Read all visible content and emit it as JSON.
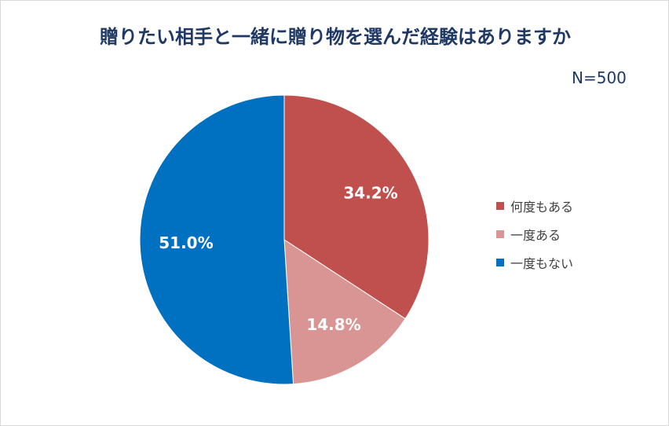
{
  "chart_data": {
    "type": "pie",
    "title": "贈りたい相手と一緒に贈り物を選んだ経験はありますか",
    "note": "N=500",
    "legend_position": "right",
    "categories": [
      "何度もある",
      "一度ある",
      "一度もない"
    ],
    "values": [
      34.2,
      14.8,
      51.0
    ],
    "value_labels": [
      "34.2%",
      "14.8%",
      "51.0%"
    ],
    "colors": [
      "#c0504d",
      "#d99594",
      "#0070c0"
    ]
  }
}
